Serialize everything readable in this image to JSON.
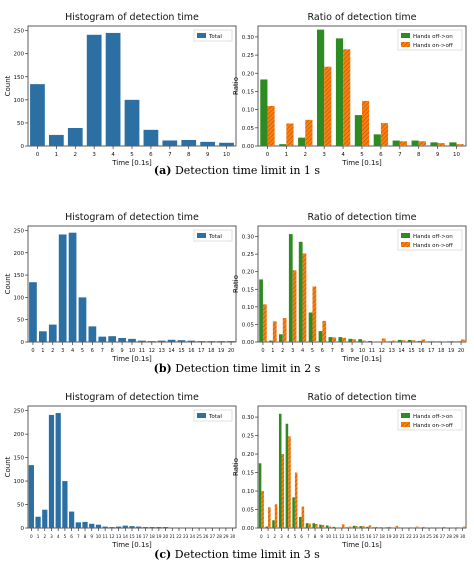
{
  "figure": {
    "captions": [
      {
        "label": "(a)",
        "text": "Detection time limit in 1 s"
      },
      {
        "label": "(b)",
        "text": "Detection time limit in 2 s"
      },
      {
        "label": "(c)",
        "text": "Detection time limit in 3 s"
      }
    ],
    "colors": {
      "hist": "#2b6fa3",
      "off_on": "#2e8b22",
      "on_off": "#ff7f0e",
      "hatch": "#b05a10"
    }
  },
  "chart_data": [
    {
      "type": "bar",
      "title": "Histogram of detection time",
      "xlabel": "Time [0.1s]",
      "ylabel": "Count",
      "ylim": [
        0,
        260
      ],
      "yticks": [
        0,
        50,
        100,
        150,
        200,
        250
      ],
      "categories": [
        "0",
        "1",
        "2",
        "3",
        "4",
        "5",
        "6",
        "7",
        "8",
        "9",
        "10"
      ],
      "series": [
        {
          "name": "Total",
          "values": [
            134,
            24,
            39,
            241,
            245,
            100,
            35,
            12,
            13,
            9,
            7
          ]
        }
      ],
      "legend": "top-right"
    },
    {
      "type": "bar",
      "title": "Ratio of detection time",
      "xlabel": "Time [0.1s]",
      "ylabel": "Ratio",
      "ylim": [
        0,
        0.33
      ],
      "yticks": [
        0.0,
        0.05,
        0.1,
        0.15,
        0.2,
        0.25,
        0.3
      ],
      "categories": [
        "0",
        "1",
        "2",
        "3",
        "4",
        "5",
        "6",
        "7",
        "8",
        "9",
        "10"
      ],
      "series": [
        {
          "name": "Hands off->on",
          "values": [
            0.183,
            0.005,
            0.023,
            0.32,
            0.296,
            0.085,
            0.032,
            0.015,
            0.015,
            0.01,
            0.01
          ]
        },
        {
          "name": "Hands on->off",
          "values": [
            0.11,
            0.062,
            0.072,
            0.218,
            0.266,
            0.124,
            0.063,
            0.013,
            0.013,
            0.008,
            0.005
          ]
        }
      ],
      "legend": "top-right"
    },
    {
      "type": "bar",
      "title": "Histogram of detection time",
      "xlabel": "Time [0.1s]",
      "ylabel": "Count",
      "ylim": [
        0,
        260
      ],
      "yticks": [
        0,
        50,
        100,
        150,
        200,
        250
      ],
      "categories": [
        "0",
        "1",
        "2",
        "3",
        "4",
        "5",
        "6",
        "7",
        "8",
        "9",
        "10",
        "11",
        "12",
        "13",
        "14",
        "15",
        "16",
        "17",
        "18",
        "19",
        "20"
      ],
      "series": [
        {
          "name": "Total",
          "values": [
            134,
            24,
            39,
            241,
            245,
            100,
            35,
            12,
            13,
            9,
            7,
            3,
            2,
            3,
            5,
            4,
            3,
            2,
            2,
            2,
            2
          ]
        }
      ],
      "legend": "top-right"
    },
    {
      "type": "bar",
      "title": "Ratio of detection time",
      "xlabel": "Time [0.1s]",
      "ylabel": "Ratio",
      "ylim": [
        0,
        0.33
      ],
      "yticks": [
        0.0,
        0.05,
        0.1,
        0.15,
        0.2,
        0.25,
        0.3
      ],
      "categories": [
        "0",
        "1",
        "2",
        "3",
        "4",
        "5",
        "6",
        "7",
        "8",
        "9",
        "10",
        "11",
        "12",
        "13",
        "14",
        "15",
        "16",
        "17",
        "18",
        "19",
        "20"
      ],
      "series": [
        {
          "name": "Hands off->on",
          "values": [
            0.178,
            0.004,
            0.022,
            0.307,
            0.285,
            0.084,
            0.031,
            0.014,
            0.014,
            0.009,
            0.008,
            0.003,
            0.001,
            0.002,
            0.006,
            0.006,
            0.003,
            0.002,
            0.002,
            0.002,
            0.002
          ]
        },
        {
          "name": "Hands on->off",
          "values": [
            0.107,
            0.059,
            0.068,
            0.204,
            0.252,
            0.158,
            0.06,
            0.013,
            0.012,
            0.008,
            0.004,
            0.002,
            0.01,
            0.004,
            0.005,
            0.005,
            0.007,
            0.003,
            0.002,
            0.003,
            0.007
          ]
        }
      ],
      "legend": "top-right"
    },
    {
      "type": "bar",
      "title": "Histogram of detection time",
      "xlabel": "Time [0.1s]",
      "ylabel": "Count",
      "ylim": [
        0,
        260
      ],
      "yticks": [
        0,
        50,
        100,
        150,
        200,
        250
      ],
      "categories": [
        "0",
        "1",
        "2",
        "3",
        "4",
        "5",
        "6",
        "7",
        "8",
        "9",
        "10",
        "11",
        "12",
        "13",
        "14",
        "15",
        "16",
        "17",
        "18",
        "19",
        "20",
        "21",
        "22",
        "23",
        "24",
        "25",
        "26",
        "27",
        "28",
        "29",
        "30"
      ],
      "series": [
        {
          "name": "Total",
          "values": [
            134,
            24,
            39,
            241,
            245,
            100,
            35,
            12,
            13,
            9,
            7,
            3,
            2,
            3,
            5,
            4,
            3,
            2,
            2,
            2,
            2,
            1,
            1,
            1,
            1,
            1,
            1,
            1,
            1,
            1,
            1
          ]
        }
      ],
      "legend": "top-right"
    },
    {
      "type": "bar",
      "title": "Ratio of detection time",
      "xlabel": "Time [0.1s]",
      "ylabel": "Ratio",
      "ylim": [
        0,
        0.33
      ],
      "yticks": [
        0.0,
        0.05,
        0.1,
        0.15,
        0.2,
        0.25,
        0.3
      ],
      "categories": [
        "0",
        "1",
        "2",
        "3",
        "4",
        "5",
        "6",
        "7",
        "8",
        "9",
        "10",
        "11",
        "12",
        "13",
        "14",
        "15",
        "16",
        "17",
        "18",
        "19",
        "20",
        "21",
        "22",
        "23",
        "24",
        "25",
        "26",
        "27",
        "28",
        "29",
        "30"
      ],
      "series": [
        {
          "name": "Hands off->on",
          "values": [
            0.175,
            0.004,
            0.021,
            0.309,
            0.282,
            0.083,
            0.03,
            0.013,
            0.013,
            0.009,
            0.007,
            0.003,
            0.001,
            0.002,
            0.006,
            0.005,
            0.003,
            0.002,
            0.002,
            0.002,
            0.001,
            0.001,
            0.001,
            0.001,
            0.001,
            0.001,
            0.001,
            0.001,
            0.001,
            0.001,
            0.001
          ]
        },
        {
          "name": "Hands on->off",
          "values": [
            0.1,
            0.056,
            0.064,
            0.2,
            0.248,
            0.15,
            0.058,
            0.012,
            0.011,
            0.008,
            0.004,
            0.002,
            0.01,
            0.004,
            0.005,
            0.005,
            0.007,
            0.003,
            0.002,
            0.003,
            0.006,
            0.002,
            0.002,
            0.004,
            0.003,
            0.002,
            0.002,
            0.003,
            0.002,
            0.002,
            0.004
          ]
        }
      ],
      "legend": "top-right"
    }
  ]
}
